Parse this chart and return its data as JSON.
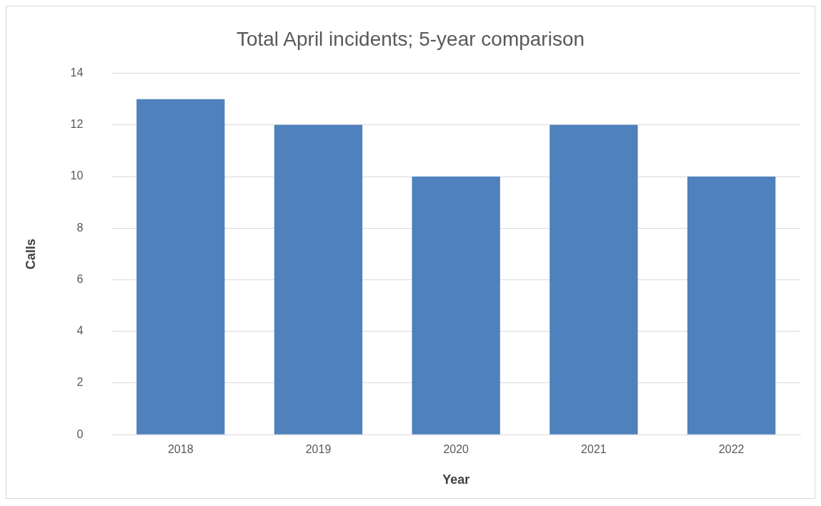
{
  "chart_data": {
    "type": "bar",
    "title": "Total April incidents; 5-year comparison",
    "xlabel": "Year",
    "ylabel": "Calls",
    "categories": [
      "2018",
      "2019",
      "2020",
      "2021",
      "2022"
    ],
    "values": [
      13,
      12,
      10,
      12,
      10
    ],
    "color": "#4f81bd",
    "ylim": [
      0,
      14
    ],
    "yticks": [
      0,
      2,
      4,
      6,
      8,
      10,
      12,
      14
    ],
    "grid": "y",
    "legend": false
  }
}
